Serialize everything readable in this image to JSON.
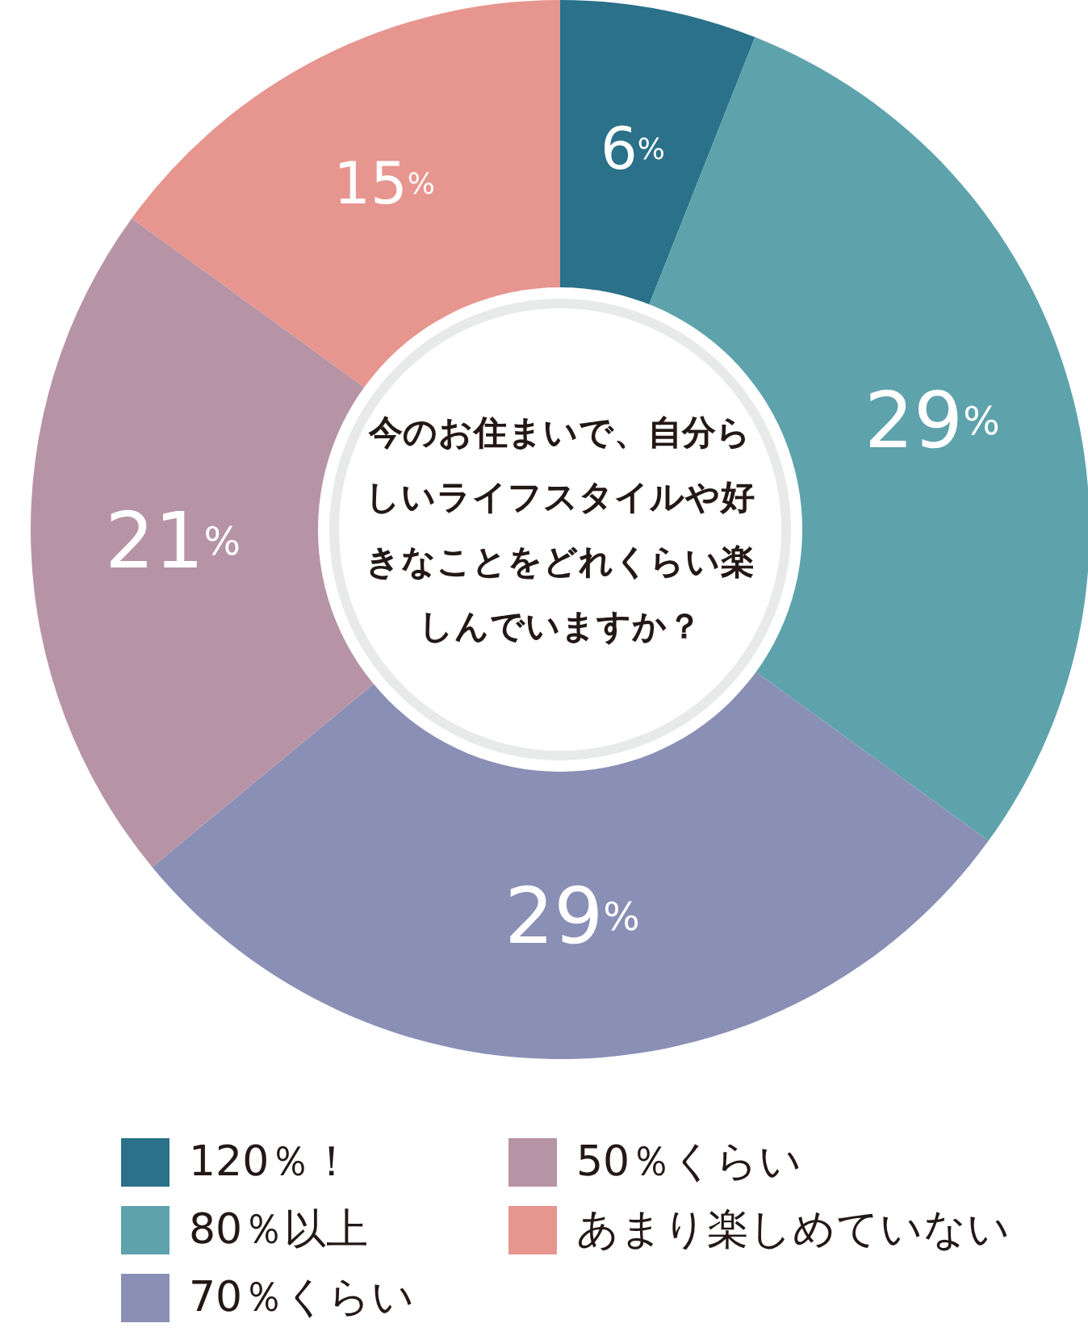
{
  "chart_data": {
    "type": "donut",
    "title": "今のお住まいで、自分らしいライフスタイルや好きなことをどれくらい楽しんでいますか？",
    "categories": [
      "120％！",
      "80％以上",
      "70％くらい",
      "50％くらい",
      "あまり楽しめていない"
    ],
    "values": [
      6,
      29,
      29,
      21,
      15
    ],
    "colors": [
      "#2a7189",
      "#5ea2ac",
      "#8a8fb5",
      "#b794a5",
      "#e7958f"
    ],
    "value_labels": [
      "6%",
      "29%",
      "29%",
      "21%",
      "15%"
    ],
    "legend": "bottom"
  }
}
